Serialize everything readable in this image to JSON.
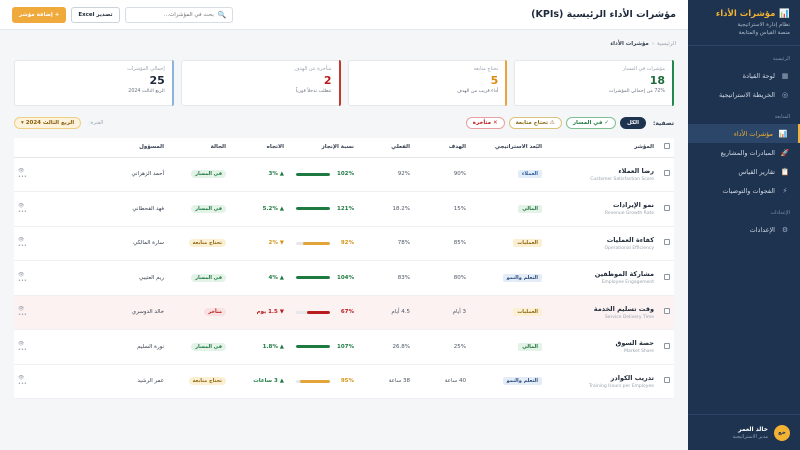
{
  "sidebar": {
    "brand_title": "مؤشرات الأداء",
    "brand_sub1": "نظام إدارة الاستراتيجية",
    "brand_sub2": "منصة القياس والمتابعة",
    "section_main": "الرئيسية",
    "section_tracking": "المتابعة",
    "section_settings": "الإعدادات",
    "items": [
      {
        "label": "لوحة القيادة",
        "icon": "grid-icon"
      },
      {
        "label": "الخريطة الاستراتيجية",
        "icon": "map-icon"
      },
      {
        "label": "مؤشرات الأداء",
        "icon": "chart-icon"
      },
      {
        "label": "المبادرات والمشاريع",
        "icon": "rocket-icon"
      },
      {
        "label": "تقارير القياس",
        "icon": "report-icon"
      },
      {
        "label": "الفجوات والتوصيات",
        "icon": "bolt-icon"
      },
      {
        "label": "الإعدادات",
        "icon": "gear-icon"
      }
    ],
    "user": {
      "initials": "خع",
      "name": "خالد العمر",
      "role": "مدير الاستراتيجية"
    }
  },
  "header": {
    "title": "مؤشرات الأداء الرئيسية (KPIs)",
    "search_placeholder": "بحث في المؤشرات...",
    "export_label": "تصدير Excel",
    "add_label": "+ إضافة مؤشر"
  },
  "breadcrumb": {
    "root": "الرئيسية",
    "current": "مؤشرات الأداء"
  },
  "cards": [
    {
      "label": "مؤشرات في المسار",
      "value": "18",
      "note": "72% من إجمالي المؤشرات",
      "accent": "#1f8a4c"
    },
    {
      "label": "تحتاج متابعة",
      "value": "5",
      "note": "أداء قريب من الهدف",
      "accent": "#e8a33a"
    },
    {
      "label": "متأخرة عن الهدف",
      "value": "2",
      "note": "تتطلب تدخلاً فورياً",
      "accent": "#c0392b"
    },
    {
      "label": "إجمالي المؤشرات",
      "value": "25",
      "note": "الربع الثالث 2024",
      "accent": "#8fb4d9"
    }
  ],
  "filters": {
    "label": "تصفية:",
    "all": "الكل",
    "ontrack": "✓ في المسار",
    "attention": "⚠ تحتاج متابعة",
    "late": "✕ متأخرة",
    "period_label": "الفترة:",
    "period_value": "الربع الثالث 2024 ▾"
  },
  "table": {
    "headers": {
      "kpi": "المؤشر",
      "dimension": "البُعد الاستراتيجي",
      "target": "الهدف",
      "actual": "الفعلي",
      "achievement": "نسبة الإنجاز",
      "trend": "الاتجاه",
      "status": "الحالة",
      "owner": "المسؤول"
    },
    "rows": [
      {
        "name": "رضا العملاء",
        "en": "Customer Satisfaction Score",
        "dimension": "العملاء",
        "dim_class": "customers",
        "target": "90%",
        "actual": "92%",
        "pct": "102%",
        "pct_value": 100,
        "level": "good",
        "trend": "▲ 3%",
        "trend_class": "good",
        "status": "في المسار",
        "status_class": "ontrack",
        "owner": "أحمد الزهراني"
      },
      {
        "name": "نمو الإيرادات",
        "en": "Revenue Growth Rate",
        "dimension": "المالي",
        "dim_class": "financial",
        "target": "15%",
        "actual": "18.2%",
        "pct": "121%",
        "pct_value": 100,
        "level": "good",
        "trend": "▲ 5.2%",
        "trend_class": "good",
        "status": "في المسار",
        "status_class": "ontrack",
        "owner": "فهد القحطاني"
      },
      {
        "name": "كفاءة العمليات",
        "en": "Operational Efficiency",
        "dimension": "العمليات",
        "dim_class": "ops",
        "target": "85%",
        "actual": "78%",
        "pct": "92%",
        "pct_value": 80,
        "level": "warn",
        "trend": "▼ 2%",
        "trend_class": "warn",
        "status": "تحتاج متابعة",
        "status_class": "attention",
        "owner": "سارة المالكي"
      },
      {
        "name": "مشاركة الموظفين",
        "en": "Employee Engagement",
        "dimension": "التعلم والنمو",
        "dim_class": "learning",
        "target": "80%",
        "actual": "83%",
        "pct": "104%",
        "pct_value": 100,
        "level": "good",
        "trend": "▲ 4%",
        "trend_class": "good",
        "status": "في المسار",
        "status_class": "ontrack",
        "owner": "ريم العتيبي"
      },
      {
        "name": "وقت تسليم الخدمة",
        "en": "Service Delivery Time",
        "dimension": "العمليات",
        "dim_class": "ops",
        "target": "3 أيام",
        "actual": "4.5 أيام",
        "pct": "67%",
        "pct_value": 67,
        "level": "bad",
        "trend": "▼ 1.5 يوم",
        "trend_class": "bad",
        "status": "متأخر",
        "status_class": "late",
        "owner": "خالد الدوسري",
        "late": true
      },
      {
        "name": "حصة السوق",
        "en": "Market Share",
        "dimension": "المالي",
        "dim_class": "financial",
        "target": "25%",
        "actual": "26.8%",
        "pct": "107%",
        "pct_value": 100,
        "level": "good",
        "trend": "▲ 1.8%",
        "trend_class": "good",
        "status": "في المسار",
        "status_class": "ontrack",
        "owner": "نورة السليم"
      },
      {
        "name": "تدريب الكوادر",
        "en": "Training Hours per Employee",
        "dimension": "التعلم والنمو",
        "dim_class": "learning",
        "target": "40 ساعة",
        "actual": "38 ساعة",
        "pct": "95%",
        "pct_value": 88,
        "level": "warn",
        "trend": "▲ 3 ساعات",
        "trend_class": "good",
        "status": "تحتاج متابعة",
        "status_class": "attention",
        "owner": "عمر الرشيد"
      }
    ]
  }
}
